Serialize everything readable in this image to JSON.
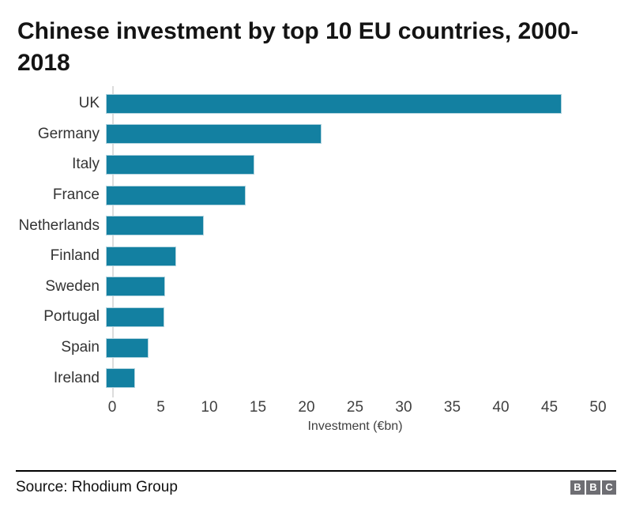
{
  "title": {
    "line1": "Chinese investment by top 10 EU countries, 2000-",
    "line2": "2018"
  },
  "chart_data": {
    "type": "bar",
    "orientation": "horizontal",
    "title": "Chinese investment by top 10 EU countries, 2000-2018",
    "categories": [
      "UK",
      "Germany",
      "Italy",
      "France",
      "Netherlands",
      "Finland",
      "Sweden",
      "Portugal",
      "Spain",
      "Ireland"
    ],
    "values": [
      46.9,
      22.2,
      15.3,
      14.4,
      10.1,
      7.2,
      6.1,
      6.0,
      4.4,
      3.0
    ],
    "xlabel": "Investment (€bn)",
    "ylabel": "",
    "xlim": [
      0,
      50
    ],
    "xticks": [
      0,
      5,
      10,
      15,
      20,
      25,
      30,
      35,
      40,
      45,
      50
    ],
    "grid": false,
    "legend": "none",
    "bar_color": "#1380A1"
  },
  "footer": {
    "source": "Source: Rhodium Group",
    "logo_letters": [
      "B",
      "B",
      "C"
    ]
  }
}
